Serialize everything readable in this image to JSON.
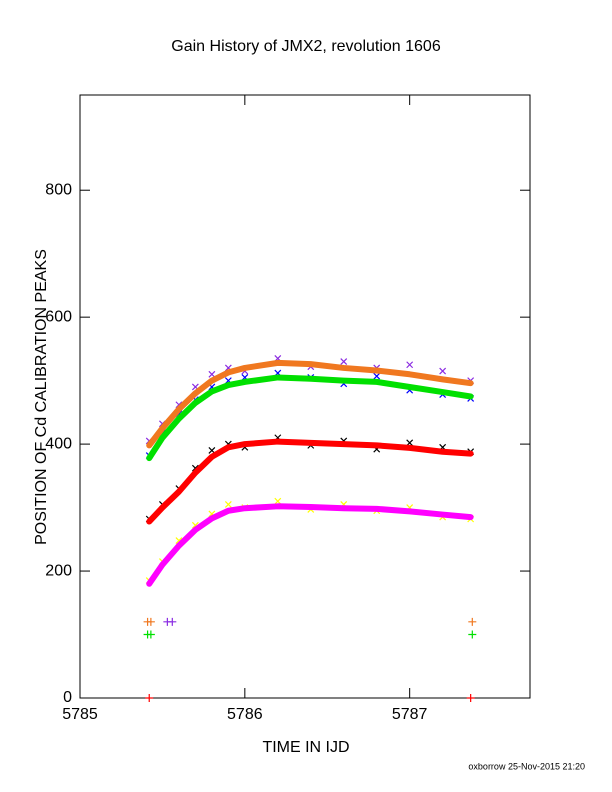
{
  "chart_data": {
    "type": "scatter",
    "title": "Gain History of JMX2, revolution 1606",
    "x_label": "TIME IN IJD",
    "y_label": "POSITION OF Cd CALIBRATION PEAKS",
    "footer": "oxborrow 25-Nov-2015 21:20",
    "xlim": [
      5785,
      5787.73
    ],
    "ylim": [
      0,
      950
    ],
    "xticks": [
      5785,
      5786,
      5787
    ],
    "yticks": [
      0,
      200,
      400,
      600,
      800
    ],
    "x": [
      5785.42,
      5785.5,
      5785.6,
      5785.7,
      5785.8,
      5785.9,
      5786.0,
      5786.2,
      5786.4,
      5786.6,
      5786.8,
      5787.0,
      5787.2,
      5787.37
    ],
    "series": [
      {
        "style": "x",
        "color": "#8a2be2",
        "values": [
          405,
          432,
          462,
          490,
          510,
          520,
          515,
          535,
          522,
          530,
          520,
          525,
          515,
          500
        ]
      },
      {
        "style": "x",
        "color": "#0000ff",
        "values": [
          382,
          418,
          448,
          470,
          490,
          500,
          505,
          512,
          505,
          495,
          507,
          485,
          478,
          472
        ]
      },
      {
        "style": "x",
        "color": "#000000",
        "values": [
          282,
          305,
          330,
          362,
          390,
          400,
          395,
          410,
          398,
          405,
          392,
          402,
          395,
          388
        ]
      },
      {
        "style": "x",
        "color": "#ffff00",
        "values": [
          185,
          215,
          248,
          272,
          290,
          305,
          300,
          310,
          297,
          305,
          295,
          300,
          285,
          282
        ]
      },
      {
        "style": "line",
        "color": "#f07820",
        "values": [
          398,
          425,
          455,
          480,
          500,
          513,
          520,
          528,
          526,
          520,
          516,
          510,
          502,
          496
        ]
      },
      {
        "style": "line",
        "color": "#00e000",
        "values": [
          378,
          410,
          440,
          465,
          483,
          493,
          498,
          505,
          503,
          500,
          498,
          490,
          482,
          475
        ]
      },
      {
        "style": "line",
        "color": "#ff0000",
        "values": [
          278,
          300,
          325,
          355,
          380,
          395,
          400,
          404,
          402,
          400,
          398,
          394,
          388,
          385
        ]
      },
      {
        "style": "line",
        "color": "#ff00ff",
        "values": [
          180,
          210,
          240,
          265,
          283,
          295,
          299,
          302,
          301,
          299,
          298,
          294,
          289,
          285
        ]
      },
      {
        "style": "plus",
        "color": "#f07820",
        "x": [
          5785.41,
          5785.43,
          5787.38
        ],
        "values": [
          120,
          120,
          120
        ]
      },
      {
        "style": "plus",
        "color": "#00e000",
        "x": [
          5785.41,
          5785.43,
          5787.38
        ],
        "values": [
          100,
          100,
          100
        ]
      },
      {
        "style": "plus",
        "color": "#8a2be2",
        "x": [
          5785.53,
          5785.56
        ],
        "values": [
          120,
          120
        ]
      },
      {
        "style": "plus",
        "color": "#ff0000",
        "x": [
          5785.42,
          5787.37
        ],
        "values": [
          0,
          0
        ]
      }
    ]
  }
}
